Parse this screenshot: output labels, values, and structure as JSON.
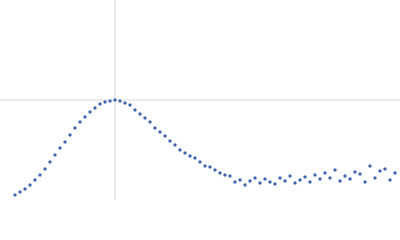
{
  "chart_data": {
    "type": "scatter",
    "x": [
      15,
      20,
      25,
      30,
      35,
      40,
      45,
      50,
      55,
      60,
      65,
      70,
      75,
      80,
      85,
      90,
      95,
      100,
      105,
      110,
      115,
      120,
      125,
      130,
      135,
      140,
      145,
      150,
      155,
      160,
      165,
      170,
      175,
      180,
      185,
      190,
      195,
      200,
      205,
      210,
      215,
      220,
      225,
      230,
      235,
      240,
      245,
      250,
      255,
      260,
      265,
      270,
      275,
      280,
      285,
      290,
      295,
      300,
      305,
      310,
      315,
      320,
      325,
      330,
      335,
      340,
      345,
      350,
      355,
      360,
      365,
      370,
      375,
      380,
      385,
      390,
      395
    ],
    "values": [
      5,
      8,
      11,
      15,
      20,
      25,
      31,
      38,
      45,
      52,
      58,
      65,
      72,
      78,
      83,
      88,
      92,
      96,
      98,
      99,
      100,
      99,
      97,
      95,
      90,
      86,
      82,
      78,
      72,
      68,
      64,
      59,
      55,
      50,
      47,
      44,
      42,
      38,
      34,
      33,
      30,
      27,
      25,
      24,
      18,
      20,
      15,
      19,
      22,
      17,
      21,
      18,
      16,
      22,
      19,
      24,
      17,
      20,
      23,
      18,
      25,
      21,
      27,
      22,
      30,
      19,
      24,
      21,
      28,
      26,
      18,
      34,
      22,
      29,
      31,
      20,
      27
    ],
    "color": "#3d64b0",
    "xlim": [
      0,
      400
    ],
    "ylim": [
      0,
      200
    ],
    "xticks": [
      115
    ],
    "yticks": [
      100
    ],
    "grid": true
  }
}
